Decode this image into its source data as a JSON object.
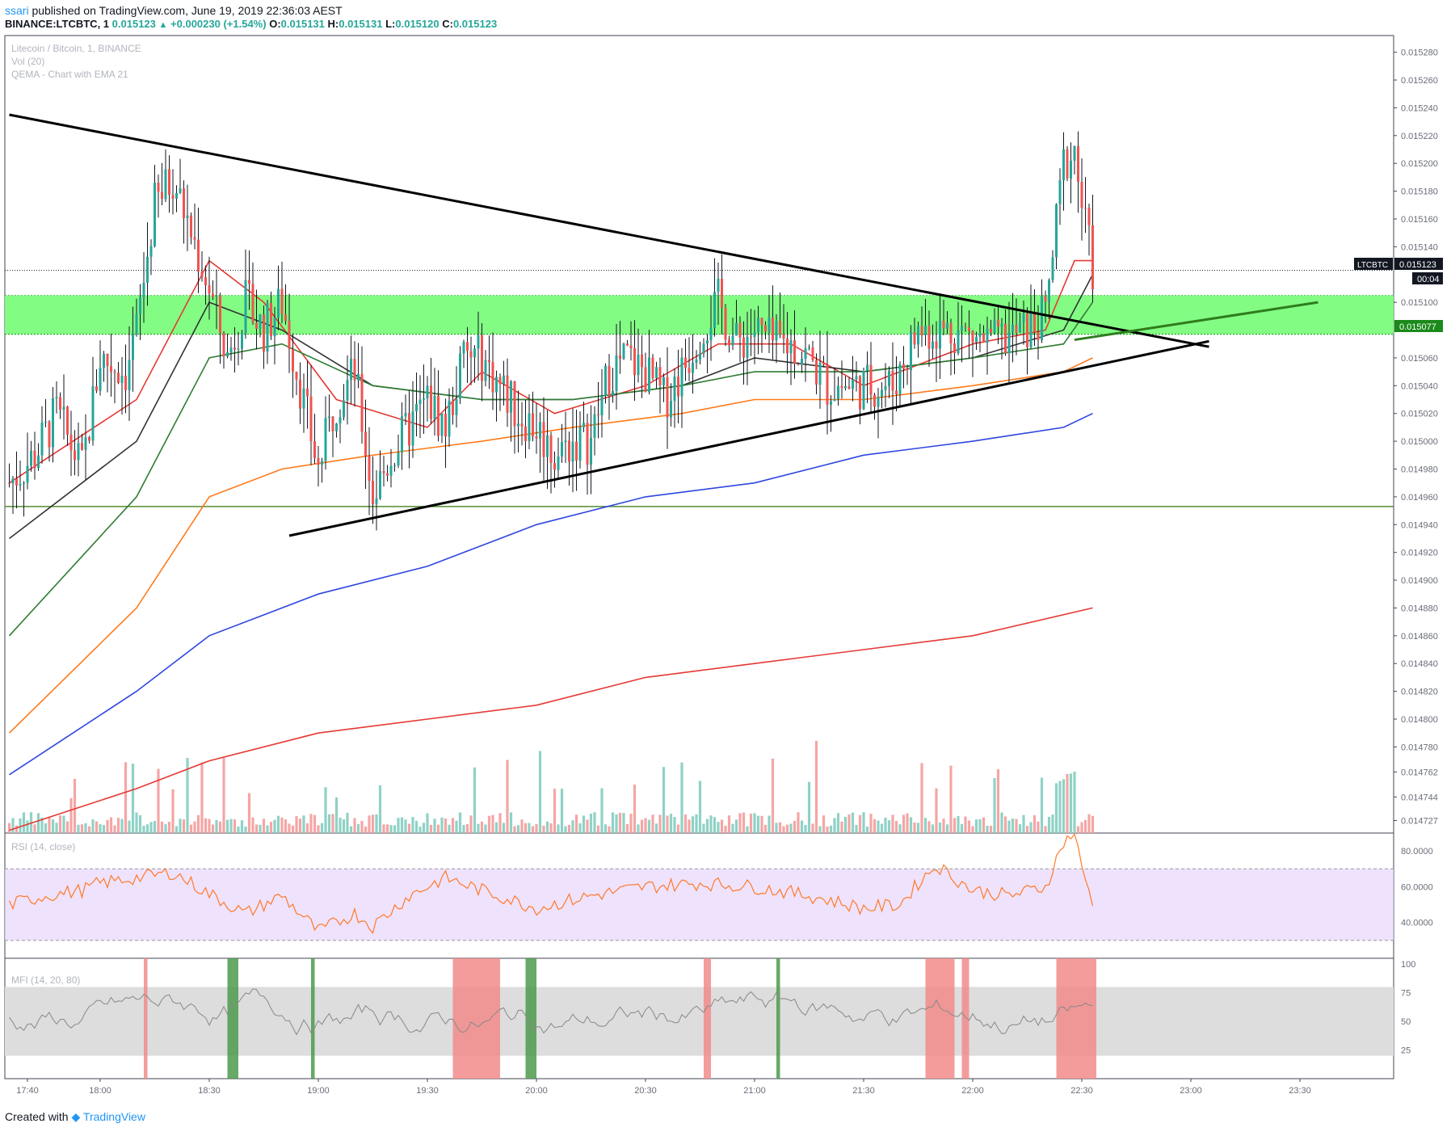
{
  "header": {
    "user": "ssari",
    "published_text": "published on TradingView.com, June 19, 2019 22:36:03 AEST",
    "symbol": "BINANCE:LTCBTC, 1",
    "last": "0.015123",
    "change": "+0.000230 (+1.54%)",
    "o_label": "O:",
    "o": "0.015131",
    "h_label": "H:",
    "h": "0.015131",
    "l_label": "L:",
    "l": "0.015120",
    "c_label": "C:",
    "c": "0.015123"
  },
  "legend": {
    "title": "Litecoin / Bitcoin, 1, BINANCE",
    "volume": "Vol (20)",
    "indicator": "QEMA - Chart with EMA 21"
  },
  "price_axis_ticks": [
    "0.015280",
    "0.015260",
    "0.015240",
    "0.015220",
    "0.015200",
    "0.015180",
    "0.015160",
    "0.015140",
    "0.015100",
    "0.015060",
    "0.015040",
    "0.015020",
    "0.015000",
    "0.014980",
    "0.014960",
    "0.014940",
    "0.014920",
    "0.014900",
    "0.014880",
    "0.014860",
    "0.014840",
    "0.014820",
    "0.014800",
    "0.014780",
    "0.014762",
    "0.014744",
    "0.014727"
  ],
  "price_labels": {
    "symbol_tag": "LTCBTC",
    "last_price": "0.015123",
    "countdown": "00:04",
    "zone_price": "0.015077"
  },
  "time_axis_ticks": [
    "17:40",
    "18:00",
    "18:30",
    "19:00",
    "19:30",
    "20:00",
    "20:30",
    "21:00",
    "21:30",
    "22:00",
    "22:30",
    "23:00",
    "23:30"
  ],
  "rsi": {
    "label": "RSI (14, close)",
    "ticks": [
      "80.0000",
      "60.0000",
      "40.0000"
    ]
  },
  "mfi": {
    "label": "MFI (14, 20, 80)",
    "ticks": [
      "100",
      "75",
      "50",
      "25"
    ]
  },
  "footer": {
    "created_with": "Created with",
    "brand": "TradingView"
  },
  "colors": {
    "up": "#26a69a",
    "down": "#ef5350",
    "volume_up": "#8fd2c6",
    "volume_down": "#f4a6a5",
    "zone": "#7cfc7c",
    "ema_red": "#e53935",
    "ema_black": "#333333",
    "ema_green": "#2e7d32",
    "ema_orange": "#ff7a1a",
    "ema_blue": "#2f46e0",
    "ema_long_red": "#e53935",
    "rsi_line": "#ff7a2a",
    "rsi_band": "#e8d5fb",
    "mfi_band": "#dddddd",
    "mfi_overbought": "#f28b8b",
    "mfi_oversold": "#4c9a4c"
  },
  "chart_data": {
    "type": "candlestick",
    "title": "Litecoin / Bitcoin, 1, BINANCE",
    "ylim": [
      0.014718,
      0.015292
    ],
    "price_path_points": [
      [
        "17:35",
        0.01497
      ],
      [
        "17:42",
        0.01499
      ],
      [
        "17:48",
        0.01502
      ],
      [
        "17:55",
        0.01498
      ],
      [
        "18:00",
        0.01506
      ],
      [
        "18:07",
        0.01505
      ],
      [
        "18:10",
        0.01508
      ],
      [
        "18:15",
        0.01517
      ],
      [
        "18:20",
        0.01519
      ],
      [
        "18:25",
        0.01515
      ],
      [
        "18:30",
        0.01511
      ],
      [
        "18:35",
        0.01506
      ],
      [
        "18:40",
        0.0151
      ],
      [
        "18:45",
        0.01508
      ],
      [
        "18:50",
        0.0151
      ],
      [
        "18:55",
        0.01504
      ],
      [
        "19:00",
        0.01498
      ],
      [
        "19:05",
        0.01503
      ],
      [
        "19:10",
        0.01505
      ],
      [
        "19:15",
        0.01496
      ],
      [
        "19:20",
        0.01499
      ],
      [
        "19:30",
        0.01503
      ],
      [
        "19:35",
        0.01501
      ],
      [
        "19:40",
        0.01506
      ],
      [
        "19:45",
        0.01506
      ],
      [
        "19:50",
        0.01504
      ],
      [
        "19:55",
        0.01502
      ],
      [
        "20:00",
        0.01501
      ],
      [
        "20:05",
        0.01499
      ],
      [
        "20:10",
        0.015
      ],
      [
        "20:15",
        0.015
      ],
      [
        "20:20",
        0.01505
      ],
      [
        "20:25",
        0.01506
      ],
      [
        "20:30",
        0.01505
      ],
      [
        "20:35",
        0.01503
      ],
      [
        "20:40",
        0.01505
      ],
      [
        "20:45",
        0.01508
      ],
      [
        "20:50",
        0.0151
      ],
      [
        "20:55",
        0.01507
      ],
      [
        "21:00",
        0.01508
      ],
      [
        "21:05",
        0.01507
      ],
      [
        "21:10",
        0.01507
      ],
      [
        "21:15",
        0.01506
      ],
      [
        "21:20",
        0.01504
      ],
      [
        "21:30",
        0.01504
      ],
      [
        "21:38",
        0.01504
      ],
      [
        "21:45",
        0.01508
      ],
      [
        "21:55",
        0.01508
      ],
      [
        "22:05",
        0.01507
      ],
      [
        "22:15",
        0.01508
      ],
      [
        "22:20",
        0.01509
      ],
      [
        "22:25",
        0.0152
      ],
      [
        "22:28",
        0.01521
      ],
      [
        "22:30",
        0.01517
      ],
      [
        "22:32",
        0.01514
      ],
      [
        "22:33",
        0.015123
      ]
    ],
    "ema_points": {
      "ema21_red": [
        [
          "17:35",
          0.01497
        ],
        [
          "18:10",
          0.01503
        ],
        [
          "18:30",
          0.01513
        ],
        [
          "18:45",
          0.0151
        ],
        [
          "19:05",
          0.01503
        ],
        [
          "19:30",
          0.01501
        ],
        [
          "19:45",
          0.01505
        ],
        [
          "20:05",
          0.01502
        ],
        [
          "20:30",
          0.01504
        ],
        [
          "20:50",
          0.01507
        ],
        [
          "21:10",
          0.01507
        ],
        [
          "21:30",
          0.01504
        ],
        [
          "22:00",
          0.01507
        ],
        [
          "22:20",
          0.01508
        ],
        [
          "22:28",
          0.01513
        ],
        [
          "22:33",
          0.01513
        ]
      ],
      "ema_black": [
        [
          "17:35",
          0.01493
        ],
        [
          "18:10",
          0.015
        ],
        [
          "18:30",
          0.0151
        ],
        [
          "18:50",
          0.01508
        ],
        [
          "19:15",
          0.01504
        ],
        [
          "19:45",
          0.01503
        ],
        [
          "20:10",
          0.01503
        ],
        [
          "20:40",
          0.01504
        ],
        [
          "21:00",
          0.01506
        ],
        [
          "21:30",
          0.01505
        ],
        [
          "22:00",
          0.01506
        ],
        [
          "22:25",
          0.01508
        ],
        [
          "22:33",
          0.01512
        ]
      ],
      "ema_green": [
        [
          "17:35",
          0.01486
        ],
        [
          "18:10",
          0.01496
        ],
        [
          "18:30",
          0.01506
        ],
        [
          "18:50",
          0.01507
        ],
        [
          "19:15",
          0.01504
        ],
        [
          "19:45",
          0.01503
        ],
        [
          "20:10",
          0.01503
        ],
        [
          "20:40",
          0.01504
        ],
        [
          "21:00",
          0.01505
        ],
        [
          "21:30",
          0.01505
        ],
        [
          "22:00",
          0.01506
        ],
        [
          "22:25",
          0.01507
        ],
        [
          "22:33",
          0.0151
        ]
      ],
      "ema_orange": [
        [
          "17:35",
          0.01479
        ],
        [
          "18:10",
          0.01488
        ],
        [
          "18:30",
          0.01496
        ],
        [
          "18:50",
          0.01498
        ],
        [
          "19:15",
          0.01499
        ],
        [
          "19:45",
          0.015
        ],
        [
          "20:10",
          0.01501
        ],
        [
          "20:40",
          0.01502
        ],
        [
          "21:00",
          0.01503
        ],
        [
          "21:30",
          0.01503
        ],
        [
          "22:00",
          0.01504
        ],
        [
          "22:25",
          0.01505
        ],
        [
          "22:33",
          0.01506
        ]
      ],
      "ema_blue": [
        [
          "17:35",
          0.01476
        ],
        [
          "18:10",
          0.01482
        ],
        [
          "18:30",
          0.01486
        ],
        [
          "19:00",
          0.01489
        ],
        [
          "19:30",
          0.01491
        ],
        [
          "20:00",
          0.01494
        ],
        [
          "20:30",
          0.01496
        ],
        [
          "21:00",
          0.01497
        ],
        [
          "21:30",
          0.01499
        ],
        [
          "22:00",
          0.015
        ],
        [
          "22:25",
          0.01501
        ],
        [
          "22:33",
          0.01502
        ]
      ],
      "ema_long_red": [
        [
          "17:35",
          0.01472
        ],
        [
          "18:10",
          0.01475
        ],
        [
          "18:30",
          0.01477
        ],
        [
          "19:00",
          0.01479
        ],
        [
          "19:30",
          0.0148
        ],
        [
          "20:00",
          0.01481
        ],
        [
          "20:30",
          0.01483
        ],
        [
          "21:00",
          0.01484
        ],
        [
          "21:30",
          0.01485
        ],
        [
          "22:00",
          0.01486
        ],
        [
          "22:33",
          0.01488
        ]
      ]
    },
    "trendlines": [
      {
        "from": [
          "17:35",
          0.015235
        ],
        "to": [
          "23:05",
          0.015068
        ]
      },
      {
        "from": [
          "18:52",
          0.014932
        ],
        "to": [
          "23:05",
          0.015072
        ]
      },
      {
        "from": [
          "22:28",
          0.015073
        ],
        "to": [
          "23:35",
          0.0151
        ]
      }
    ],
    "horizontal_levels": [
      0.014953
    ],
    "zone": [
      0.015077,
      0.015105
    ],
    "rsi_band": [
      30,
      70
    ],
    "rsi_ylim": [
      20,
      90
    ],
    "rsi_points": [
      [
        "17:35",
        50
      ],
      [
        "17:45",
        55
      ],
      [
        "17:55",
        58
      ],
      [
        "18:00",
        62
      ],
      [
        "18:10",
        65
      ],
      [
        "18:20",
        68
      ],
      [
        "18:30",
        56
      ],
      [
        "18:40",
        45
      ],
      [
        "18:50",
        55
      ],
      [
        "19:00",
        35
      ],
      [
        "19:10",
        45
      ],
      [
        "19:15",
        38
      ],
      [
        "19:25",
        55
      ],
      [
        "19:35",
        65
      ],
      [
        "19:45",
        58
      ],
      [
        "20:00",
        48
      ],
      [
        "20:15",
        55
      ],
      [
        "20:30",
        60
      ],
      [
        "20:45",
        62
      ],
      [
        "21:00",
        60
      ],
      [
        "21:15",
        55
      ],
      [
        "21:30",
        48
      ],
      [
        "21:40",
        50
      ],
      [
        "21:45",
        62
      ],
      [
        "21:50",
        72
      ],
      [
        "22:00",
        58
      ],
      [
        "22:10",
        55
      ],
      [
        "22:20",
        60
      ],
      [
        "22:25",
        85
      ],
      [
        "22:28",
        90
      ],
      [
        "22:30",
        70
      ],
      [
        "22:33",
        52
      ]
    ],
    "mfi_band": [
      20,
      80
    ],
    "mfi_ylim": [
      0,
      105
    ],
    "mfi_overbought_windows": [
      [
        "18:12",
        "18:13"
      ],
      [
        "19:37",
        "19:50"
      ],
      [
        "20:46",
        "20:48"
      ],
      [
        "21:47",
        "21:55"
      ],
      [
        "21:57",
        "21:59"
      ],
      [
        "22:23",
        "22:34"
      ]
    ],
    "mfi_oversold_windows": [
      [
        "18:35",
        "18:38"
      ],
      [
        "18:58",
        "18:59"
      ],
      [
        "19:57",
        "20:00"
      ],
      [
        "21:06",
        "21:07"
      ]
    ]
  }
}
